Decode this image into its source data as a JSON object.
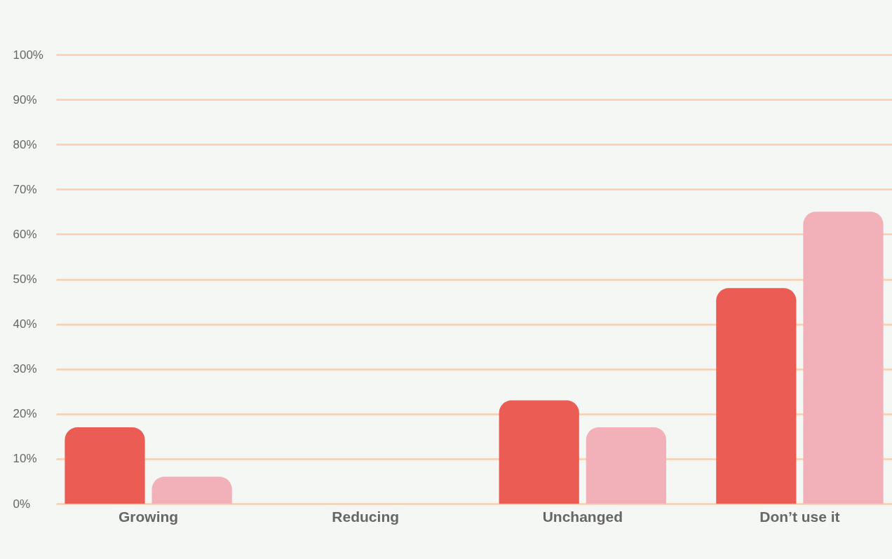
{
  "chart_data": {
    "type": "bar",
    "categories": [
      "Growing",
      "Reducing",
      "Unchanged",
      "Don’t use it"
    ],
    "series": [
      {
        "color": "#eb5d54",
        "values": [
          17,
          0,
          23,
          48
        ]
      },
      {
        "color": "#f2b0b9",
        "values": [
          6,
          0,
          17,
          65
        ]
      }
    ],
    "ylim": [
      0,
      100
    ],
    "yticks": [
      {
        "value": 0,
        "label": "0%"
      },
      {
        "value": 10,
        "label": "10%"
      },
      {
        "value": 20,
        "label": "20%"
      },
      {
        "value": 30,
        "label": "30%"
      },
      {
        "value": 40,
        "label": "40%"
      },
      {
        "value": 50,
        "label": "50%"
      },
      {
        "value": 60,
        "label": "60%"
      },
      {
        "value": 70,
        "label": "70%"
      },
      {
        "value": 80,
        "label": "80%"
      },
      {
        "value": 90,
        "label": "90%"
      },
      {
        "value": 100,
        "label": "100%"
      }
    ],
    "grid": "y",
    "legend": false
  }
}
